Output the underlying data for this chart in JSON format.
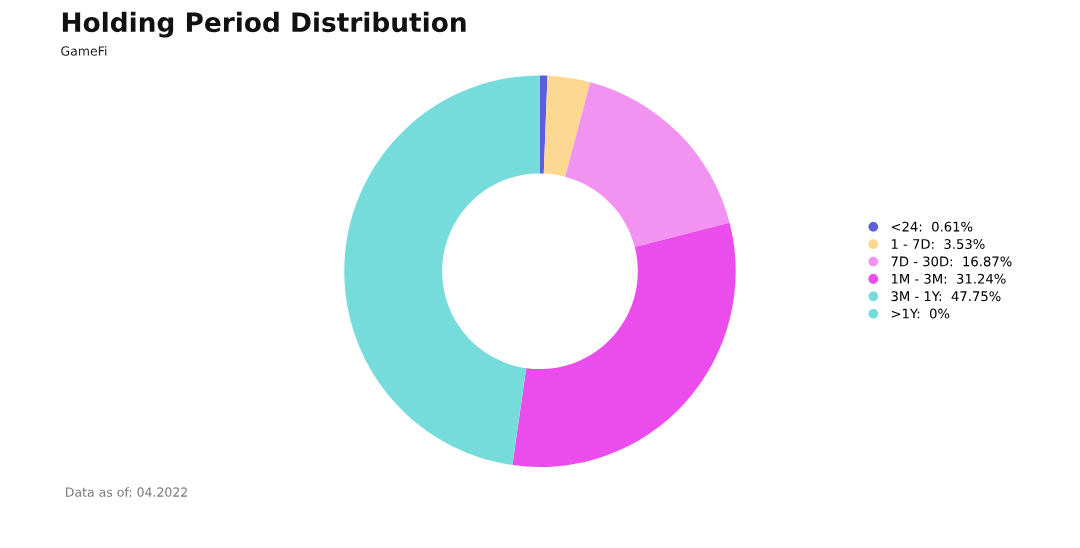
{
  "chart_data": {
    "type": "donut",
    "title": "Holding Period Distribution",
    "subtitle": "GameFi",
    "categories": [
      "<24",
      "1 - 7D",
      "7D - 30D",
      "1M - 3M",
      "3M - 1Y",
      ">1Y"
    ],
    "values": [
      0.61,
      3.53,
      16.87,
      31.24,
      47.75,
      0
    ],
    "value_labels": [
      "0.61%",
      "3.53%",
      "16.87%",
      "31.24%",
      "47.75%",
      "0%"
    ],
    "colors": [
      "#5b5fd9",
      "#fcd893",
      "#f293f2",
      "#ea4deb",
      "#76dbdb",
      "#76dbdb"
    ],
    "legend": "right",
    "annotations": [
      "Data as of: 04.2022"
    ]
  }
}
